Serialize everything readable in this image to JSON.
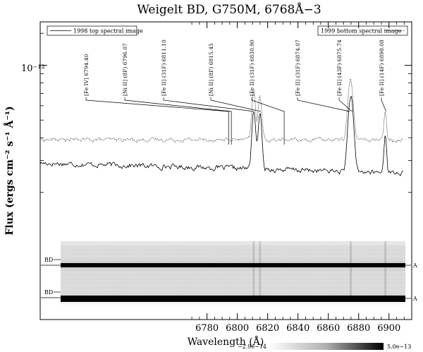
{
  "chart_data": {
    "type": "line",
    "title": "Weigelt BD, G750M, 6768Å−3",
    "xlabel": "Wavelength (Å)",
    "ylabel": "Flux (ergs cm⁻² s⁻¹ Å⁻¹)",
    "y_scale": "log",
    "y_tick_label": "10⁻¹²",
    "xlim": [
      6670,
      6915
    ],
    "x_ticks": [
      6780,
      6800,
      6820,
      6840,
      6860,
      6880,
      6900
    ],
    "ylim": [
      1.2e-13,
      1.6e-12
    ],
    "grid": false,
    "legend": [
      {
        "label": "1998 top spectral image",
        "style": "solid",
        "placement": "top-left"
      },
      {
        "label": "1999 bottom spectral image",
        "style": "dotted",
        "placement": "top-right"
      }
    ],
    "lines": [
      {
        "name": "[Fe IV] 6794.40",
        "x": 6794.4
      },
      {
        "name": "[Ni II] (8F) 6796.07",
        "x": 6796.07
      },
      {
        "name": "[Fe II] (31F) 6811.10",
        "x": 6811.1
      },
      {
        "name": "[Ni II] (8F) 6815.45",
        "x": 6815.45
      },
      {
        "name": "[Fe II] (31F) 6830.90",
        "x": 6830.9
      },
      {
        "name": "[Fe II] (31F) 6874.07",
        "x": 6874.07
      },
      {
        "name": "[Fe II] (43F) 6875.74",
        "x": 6875.74
      },
      {
        "name": "[Fe II] (14F) 6898.08",
        "x": 6898.08
      }
    ],
    "series": [
      {
        "name": "1998 top spectral image",
        "style": "solid",
        "baseline": 2.9e-13,
        "peaks": [
          {
            "x": 6810.8,
            "height": 3.2e-13,
            "width": 1.1
          },
          {
            "x": 6814.9,
            "height": 3e-13,
            "width": 1.1
          },
          {
            "x": 6874.8,
            "height": 4.7e-13,
            "width": 1.6
          },
          {
            "x": 6897.6,
            "height": 1.9e-13,
            "width": 0.8
          }
        ],
        "noise": 0.06
      },
      {
        "name": "1999 bottom spectral image",
        "style": "dotted",
        "baseline": 3.9e-13,
        "peaks": [
          {
            "x": 6810.8,
            "height": 3.4e-13,
            "width": 1.1
          },
          {
            "x": 6814.9,
            "height": 2.9e-13,
            "width": 1.1
          },
          {
            "x": 6874.6,
            "height": 4.4e-13,
            "width": 1.6
          },
          {
            "x": 6897.6,
            "height": 1.7e-13,
            "width": 0.8
          }
        ],
        "noise": 0.045
      }
    ],
    "image_panel": {
      "left_labels": [
        "BD",
        "BD"
      ],
      "right_labels": [
        "A",
        "A"
      ],
      "colorbar_min": "−2.9e−14",
      "colorbar_max": "5.0e−13"
    }
  }
}
